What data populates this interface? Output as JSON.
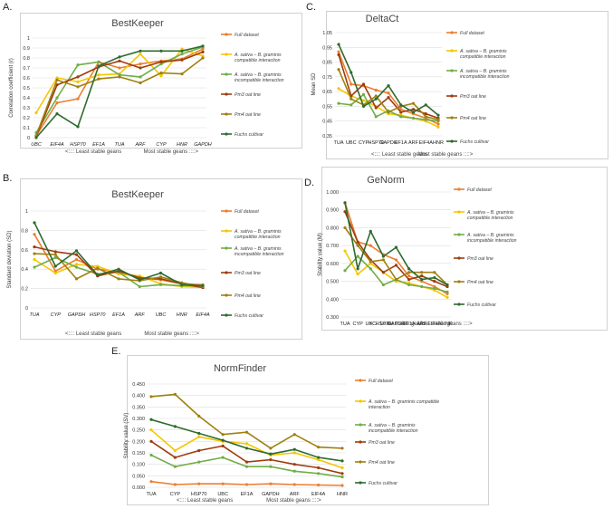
{
  "figure": {
    "series_colors": {
      "Full dataset": "#ED7D31",
      "compatible": "#F4C600",
      "incompatible": "#70AD47",
      "Pm3 oat line": "#9E3C0E",
      "Pm4 oat line": "#A08010",
      "Fuchs cultivar": "#2E6B2E"
    }
  },
  "chart_data": [
    {
      "panel_label": "A.",
      "type": "line",
      "title": "BestKeeper",
      "ylabel": "Correlation coefficient (r)",
      "ylim": [
        0,
        1
      ],
      "yticks": [
        "0",
        "0.1",
        "0.2",
        "0.3",
        "0.4",
        "0.5",
        "0.6",
        "0.7",
        "0.8",
        "0.9",
        "1"
      ],
      "categories": [
        "UBC",
        "EIF4A",
        "HSP70",
        "EF1A",
        "TUA",
        "ARF",
        "CYP",
        "HNR",
        "GAPDH"
      ],
      "italic_categories": true,
      "xnote_left": "<:::: Least stable geans",
      "xnote_right": "Most stable geans ::::>",
      "series": [
        {
          "name": "Full dataset",
          "color": "#ED7D31",
          "values": [
            0.02,
            0.35,
            0.39,
            0.76,
            0.7,
            0.74,
            0.77,
            0.79,
            0.89
          ]
        },
        {
          "name": "A. sativa – B. graminis compatible interaction",
          "color": "#F4C600",
          "values": [
            0.25,
            0.6,
            0.56,
            0.63,
            0.64,
            0.84,
            0.62,
            0.89,
            0.82
          ]
        },
        {
          "name": "A. sativa – B. graminis incompatible interaction",
          "color": "#70AD47",
          "values": [
            0.05,
            0.4,
            0.73,
            0.76,
            0.63,
            0.61,
            0.74,
            0.84,
            0.91
          ]
        },
        {
          "name": "Pm3 oat line",
          "color": "#9E3C0E",
          "values": [
            0.01,
            0.53,
            0.61,
            0.71,
            0.77,
            0.7,
            0.76,
            0.78,
            0.86
          ]
        },
        {
          "name": "Pm4 oat line",
          "color": "#A08010",
          "values": [
            0.02,
            0.58,
            0.51,
            0.59,
            0.61,
            0.55,
            0.65,
            0.64,
            0.8
          ]
        },
        {
          "name": "Fuchs cultivar",
          "color": "#2E6B2E",
          "values": [
            0.0,
            0.24,
            0.11,
            0.72,
            0.81,
            0.87,
            0.87,
            0.87,
            0.92
          ]
        }
      ]
    },
    {
      "panel_label": "B.",
      "type": "line",
      "title": "BestKeeper",
      "ylabel": "Standard deviation (SD)",
      "ylim": [
        0,
        1
      ],
      "yticks": [
        "0",
        "0.2",
        "0.4",
        "0.6",
        "0.8",
        "1"
      ],
      "categories": [
        "TUA",
        "CYP",
        "GAPDH",
        "HSP70",
        "EF1A",
        "ARF",
        "UBC",
        "HNR",
        "EIF4A"
      ],
      "italic_categories": true,
      "xnote_left": "<:::: Least stable geans",
      "xnote_right": "Most stable geans ::::>",
      "series": [
        {
          "name": "Full dataset",
          "color": "#ED7D31",
          "values": [
            0.76,
            0.38,
            0.5,
            0.4,
            0.37,
            0.31,
            0.29,
            0.25,
            0.24
          ]
        },
        {
          "name": "A. sativa – B. graminis compatible interaction",
          "color": "#F4C600",
          "values": [
            0.5,
            0.36,
            0.45,
            0.43,
            0.35,
            0.33,
            0.25,
            0.22,
            0.21
          ]
        },
        {
          "name": "A. sativa – B. graminis incompatible interaction",
          "color": "#70AD47",
          "values": [
            0.42,
            0.52,
            0.42,
            0.35,
            0.37,
            0.22,
            0.24,
            0.23,
            0.23
          ]
        },
        {
          "name": "Pm3 oat line",
          "color": "#9E3C0E",
          "values": [
            0.63,
            0.58,
            0.55,
            0.33,
            0.38,
            0.31,
            0.3,
            0.25,
            0.21
          ]
        },
        {
          "name": "Pm4 oat line",
          "color": "#A08010",
          "values": [
            0.56,
            0.55,
            0.3,
            0.41,
            0.3,
            0.28,
            0.32,
            0.26,
            0.22
          ]
        },
        {
          "name": "Fuchs cultivar",
          "color": "#2E6B2E",
          "values": [
            0.88,
            0.43,
            0.59,
            0.34,
            0.4,
            0.29,
            0.36,
            0.24,
            0.23
          ]
        }
      ]
    },
    {
      "panel_label": "C.",
      "type": "line",
      "title": "DeltaCt",
      "ylabel": "Mean SD",
      "ylim": [
        0.35,
        1.05
      ],
      "yticks": [
        "0.35",
        "0.45",
        "0.55",
        "0.65",
        "0.75",
        "0.85",
        "0.95",
        "1.05"
      ],
      "categories": [
        "TUA",
        "UBC",
        "CYP",
        "HSP70",
        "GAPDH",
        "EF1A",
        "ARF",
        "EIF4A",
        "HNR"
      ],
      "italic_categories": false,
      "xnote_left": "<:::: Least stable geans",
      "xnote_right": "Most stable geans ::::>",
      "series": [
        {
          "name": "Full dataset",
          "color": "#ED7D31",
          "values": [
            0.92,
            0.7,
            0.69,
            0.66,
            0.64,
            0.53,
            0.5,
            0.47,
            0.43
          ]
        },
        {
          "name": "A. sativa – B. graminis compatible interaction",
          "color": "#F4C600",
          "values": [
            0.67,
            0.62,
            0.59,
            0.55,
            0.5,
            0.49,
            0.47,
            0.45,
            0.41
          ]
        },
        {
          "name": "A. sativa – B. graminis incompatible interaction",
          "color": "#70AD47",
          "values": [
            0.57,
            0.56,
            0.63,
            0.48,
            0.52,
            0.48,
            0.47,
            0.46,
            0.45
          ]
        },
        {
          "name": "Pm3 oat line",
          "color": "#9E3C0E",
          "values": [
            0.9,
            0.62,
            0.7,
            0.54,
            0.61,
            0.51,
            0.53,
            0.5,
            0.47
          ]
        },
        {
          "name": "Pm4 oat line",
          "color": "#A08010",
          "values": [
            0.8,
            0.6,
            0.56,
            0.62,
            0.51,
            0.55,
            0.57,
            0.48,
            0.46
          ]
        },
        {
          "name": "Fuchs cultivar",
          "color": "#2E6B2E",
          "values": [
            0.97,
            0.78,
            0.55,
            0.6,
            0.69,
            0.56,
            0.51,
            0.56,
            0.49
          ]
        }
      ]
    },
    {
      "panel_label": "D.",
      "type": "line",
      "title": "GeNorm",
      "ylabel": "Stability value (M)",
      "ylim": [
        0.3,
        1.0
      ],
      "yticks": [
        "0.300",
        "0.400",
        "0.500",
        "0.600",
        "0.700",
        "0.800",
        "0.900",
        "1.000"
      ],
      "categories": [
        "TUA",
        "CYP",
        "UBC",
        "HSP70",
        "GAPDH",
        "EF1A",
        "ARF",
        "EIF4A",
        "HNR"
      ],
      "italic_categories": false,
      "xnote_left": "<:::: Least stable geans",
      "xnote_right": "Most stable geans ::::>",
      "series": [
        {
          "name": "Full dataset",
          "color": "#ED7D31",
          "values": [
            0.94,
            0.72,
            0.7,
            0.65,
            0.62,
            0.53,
            0.5,
            0.47,
            0.43
          ]
        },
        {
          "name": "A. sativa – B. graminis compatible interaction",
          "color": "#F4C600",
          "values": [
            0.67,
            0.54,
            0.6,
            0.55,
            0.5,
            0.49,
            0.47,
            0.45,
            0.41
          ]
        },
        {
          "name": "A. sativa – B. graminis incompatible interaction",
          "color": "#70AD47",
          "values": [
            0.56,
            0.64,
            0.57,
            0.48,
            0.51,
            0.48,
            0.47,
            0.46,
            0.44
          ]
        },
        {
          "name": "Pm3 oat line",
          "color": "#9E3C0E",
          "values": [
            0.89,
            0.72,
            0.62,
            0.55,
            0.59,
            0.51,
            0.53,
            0.5,
            0.47
          ]
        },
        {
          "name": "Pm4 oat line",
          "color": "#A08010",
          "values": [
            0.8,
            0.7,
            0.61,
            0.62,
            0.51,
            0.55,
            0.55,
            0.55,
            0.48
          ]
        },
        {
          "name": "Fuchs cultivar",
          "color": "#2E6B2E",
          "values": [
            0.94,
            0.57,
            0.78,
            0.64,
            0.69,
            0.57,
            0.51,
            0.52,
            0.48
          ]
        }
      ]
    },
    {
      "panel_label": "E.",
      "type": "line",
      "title": "NormFinder",
      "ylabel": "Stability value (SV)",
      "ylim": [
        0,
        0.45
      ],
      "yticks": [
        "0.000",
        "0.050",
        "0.100",
        "0.150",
        "0.200",
        "0.250",
        "0.300",
        "0.350",
        "0.400",
        "0.450"
      ],
      "categories": [
        "TUA",
        "CYP",
        "HSP70",
        "UBC",
        "EF1A",
        "GAPDH",
        "ARF",
        "EIF4A",
        "HNR"
      ],
      "italic_categories": false,
      "xnote_left": "<:::: Least stable geans",
      "xnote_right": "Most stable geans ::::>",
      "series": [
        {
          "name": "Full dataset",
          "color": "#ED7D31",
          "values": [
            0.025,
            0.012,
            0.015,
            0.015,
            0.012,
            0.015,
            0.012,
            0.01,
            0.008
          ]
        },
        {
          "name": "A. sativa – B. graminis compatible interaction",
          "color": "#F4C600",
          "values": [
            0.25,
            0.16,
            0.22,
            0.2,
            0.19,
            0.14,
            0.15,
            0.12,
            0.085
          ]
        },
        {
          "name": "A. sativa – B. graminis incompatible interaction",
          "color": "#70AD47",
          "values": [
            0.14,
            0.09,
            0.11,
            0.13,
            0.09,
            0.09,
            0.07,
            0.06,
            0.045
          ]
        },
        {
          "name": "Pm3 oat line",
          "color": "#9E3C0E",
          "values": [
            0.2,
            0.13,
            0.16,
            0.18,
            0.11,
            0.12,
            0.1,
            0.085,
            0.06
          ]
        },
        {
          "name": "Pm4 oat line",
          "color": "#A08010",
          "values": [
            0.395,
            0.405,
            0.31,
            0.23,
            0.24,
            0.17,
            0.23,
            0.175,
            0.17
          ]
        },
        {
          "name": "Fuchs cultivar",
          "color": "#2E6B2E",
          "values": [
            0.295,
            0.265,
            0.235,
            0.205,
            0.17,
            0.145,
            0.165,
            0.13,
            0.115
          ]
        }
      ]
    }
  ]
}
